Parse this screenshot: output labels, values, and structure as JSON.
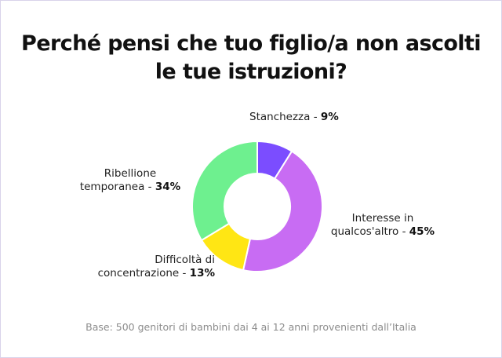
{
  "chart_data": {
    "type": "pie",
    "donut": true,
    "title_lines": [
      "Perché pensi che tuo figlio/a non ascolti",
      "le tue istruzioni?"
    ],
    "slices": [
      {
        "name": "Stanchezza",
        "value": 9,
        "value_label": "9%",
        "color": "#7b4dff",
        "label_lines": [
          "Stanchezza - "
        ]
      },
      {
        "name": "Interesse in qualcos'altro",
        "value": 45,
        "value_label": "45%",
        "color": "#c86cf3",
        "label_lines": [
          "Interesse in",
          "qualcos'altro - "
        ]
      },
      {
        "name": "Difficoltà di concentrazione",
        "value": 13,
        "value_label": "13%",
        "color": "#ffe614",
        "label_lines": [
          "Difficoltà di",
          "concentrazione - "
        ]
      },
      {
        "name": "Ribellione temporanea",
        "value": 34,
        "value_label": "34%",
        "color": "#6ef08f",
        "label_lines": [
          "Ribellione",
          "temporanea - "
        ]
      }
    ],
    "footnote": "Base: 500 genitori di bambini dai 4 ai 12 anni provenienti dall’Italia"
  }
}
